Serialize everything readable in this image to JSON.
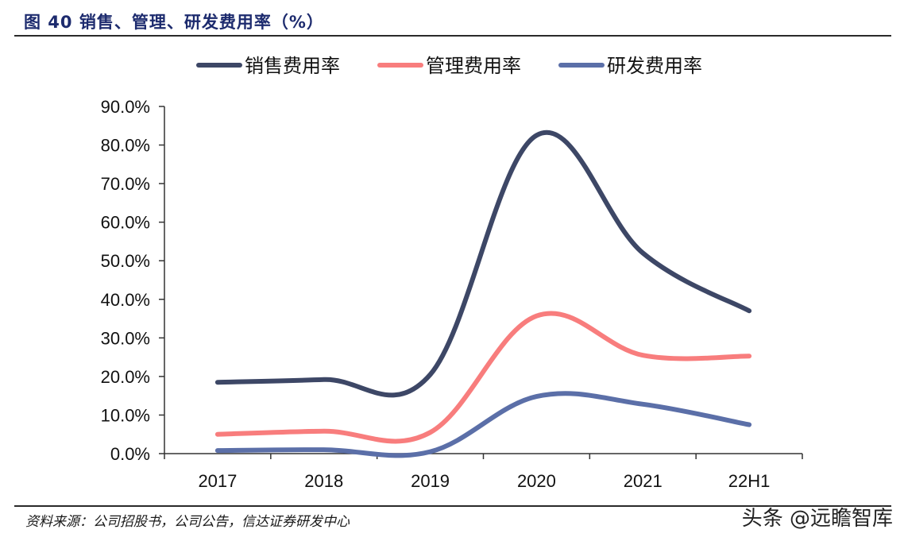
{
  "figure_title": "图 40  销售、管理、研发费用率（%）",
  "source_note": "资料来源：公司招股书，公司公告，信达证券研发中心",
  "watermark": "头条 @远瞻智库",
  "colors": {
    "title": "#1d2b6e",
    "axis": "#333333",
    "series": [
      "#3d4766",
      "#f87d7d",
      "#5b6fa8"
    ]
  },
  "chart_data": {
    "type": "line",
    "smooth": true,
    "categories": [
      "2017",
      "2018",
      "2019",
      "2020",
      "2021",
      "22H1"
    ],
    "series": [
      {
        "name": "销售费用率",
        "values": [
          18.5,
          19.2,
          20.5,
          82.5,
          52.0,
          37.0
        ]
      },
      {
        "name": "管理费用率",
        "values": [
          5.0,
          5.8,
          5.5,
          35.7,
          25.5,
          25.3
        ]
      },
      {
        "name": "研发费用率",
        "values": [
          0.8,
          1.0,
          0.5,
          14.8,
          12.8,
          7.5
        ]
      }
    ],
    "ylim": [
      0,
      90
    ],
    "yticks": [
      "0.0%",
      "10.0%",
      "20.0%",
      "30.0%",
      "40.0%",
      "50.0%",
      "60.0%",
      "70.0%",
      "80.0%",
      "90.0%"
    ],
    "legend_position": "top",
    "grid": false
  }
}
